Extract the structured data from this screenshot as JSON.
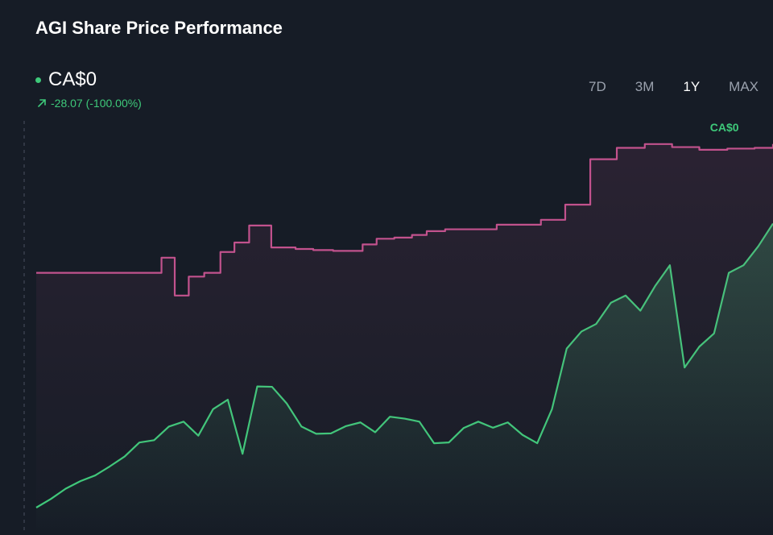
{
  "header": {
    "title": "AGI Share Price Performance",
    "price": "CA$0",
    "change": "-28.07 (-100.00%)"
  },
  "range_tabs": [
    {
      "label": "7D",
      "active": false
    },
    {
      "label": "3M",
      "active": false
    },
    {
      "label": "1Y",
      "active": true
    },
    {
      "label": "MAX",
      "active": false
    }
  ],
  "colors": {
    "background": "#161c26",
    "price_line": "#3ec97a",
    "secondary_line": "#c2528d"
  },
  "chart_data": {
    "type": "line",
    "series": [
      {
        "name": "",
        "color": "#3ec97a",
        "x": [
          0,
          2,
          4,
          6,
          8,
          10,
          12,
          14,
          16,
          18,
          20,
          22,
          24,
          26,
          28,
          30,
          32,
          34,
          36,
          38,
          40,
          42,
          44,
          46,
          48,
          50,
          52,
          54,
          56,
          58,
          60,
          62,
          64,
          66,
          68,
          70,
          72,
          74,
          76,
          78,
          80,
          82,
          84,
          86,
          88,
          90,
          92,
          94,
          96,
          98,
          100
        ],
        "values": [
          0,
          2.3,
          5.0,
          7.0,
          8.5,
          10.9,
          13.5,
          17.2,
          17.8,
          21.4,
          22.7,
          19.0,
          26.0,
          28.5,
          14.2,
          32.0,
          31.9,
          27.5,
          21.4,
          19.5,
          19.6,
          21.5,
          22.5,
          19.9,
          24.0,
          23.5,
          22.7,
          17.0,
          17.2,
          21.0,
          22.7,
          21.1,
          22.5,
          19.2,
          17.0,
          26.0,
          42.0,
          46.5,
          48.5,
          54.1,
          56.0,
          52.0,
          58.5,
          64.0,
          37.0,
          42.5,
          46.0,
          62.0,
          64.0,
          69.0,
          75.0
        ],
        "label_end": "CA$0"
      },
      {
        "name": "",
        "color": "#c2528d",
        "x": [
          0,
          17,
          18.8,
          20.7,
          22.8,
          25.0,
          26.9,
          28.9,
          31.9,
          35.2,
          37.6,
          40.3,
          44.3,
          46.2,
          48.6,
          51.0,
          53.0,
          55.5,
          62.5,
          68.5,
          71.8,
          75.2,
          78.8,
          82.6,
          86.3,
          90.0,
          93.8,
          97.5,
          100
        ],
        "values": [
          62,
          66,
          56,
          61,
          62,
          67.5,
          70,
          74.5,
          68.7,
          68.3,
          68,
          67.8,
          69.5,
          71,
          71.3,
          72,
          73,
          73.5,
          74.7,
          76,
          80,
          92,
          95,
          96,
          95.2,
          94.5,
          94.8,
          95,
          96
        ]
      }
    ],
    "xlabel": "",
    "ylabel": "",
    "ylim": [
      0,
      100
    ]
  }
}
